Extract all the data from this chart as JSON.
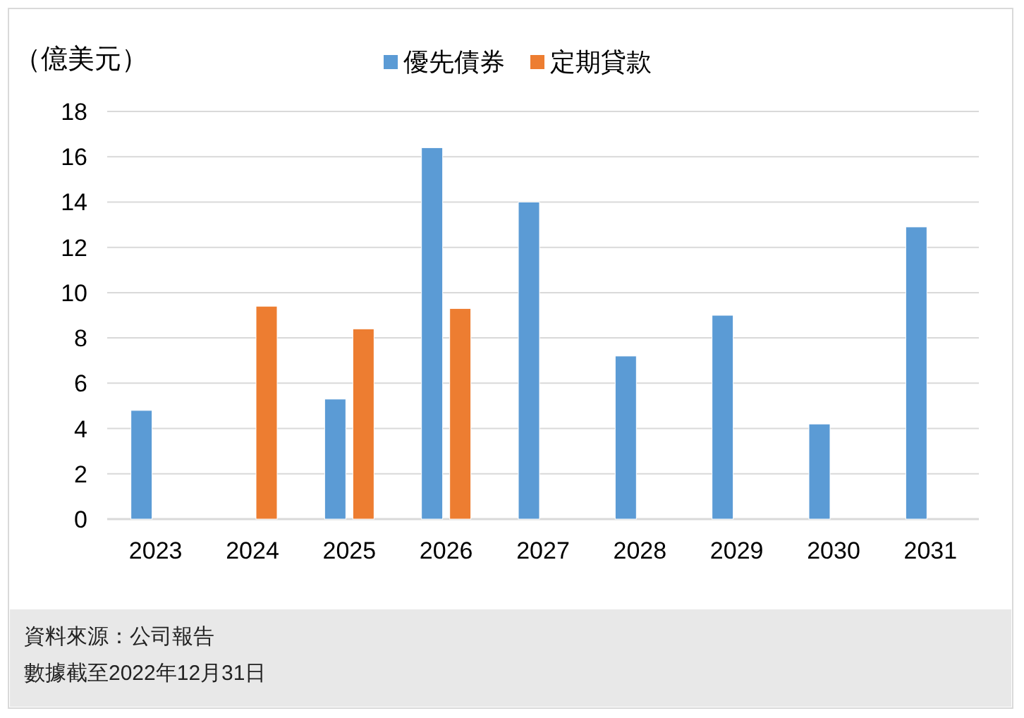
{
  "chart_data": {
    "type": "bar",
    "ylabel": "（億美元）",
    "categories": [
      "2023",
      "2024",
      "2025",
      "2026",
      "2027",
      "2028",
      "2029",
      "2030",
      "2031"
    ],
    "series": [
      {
        "name": "優先債券",
        "color": "#5b9bd5",
        "values": [
          4.8,
          null,
          5.3,
          16.4,
          14.0,
          7.2,
          9.0,
          4.2,
          12.9
        ]
      },
      {
        "name": "定期貸款",
        "color": "#ed7d31",
        "values": [
          null,
          9.4,
          8.4,
          9.3,
          null,
          null,
          null,
          null,
          null
        ]
      }
    ],
    "ylim": [
      0,
      18
    ],
    "yticks": [
      0,
      2,
      4,
      6,
      8,
      10,
      12,
      14,
      16,
      18
    ],
    "grid": "y",
    "legend": "top",
    "annotations": [
      "資料來源：公司報告",
      "數據截至2022年12月31日"
    ]
  }
}
